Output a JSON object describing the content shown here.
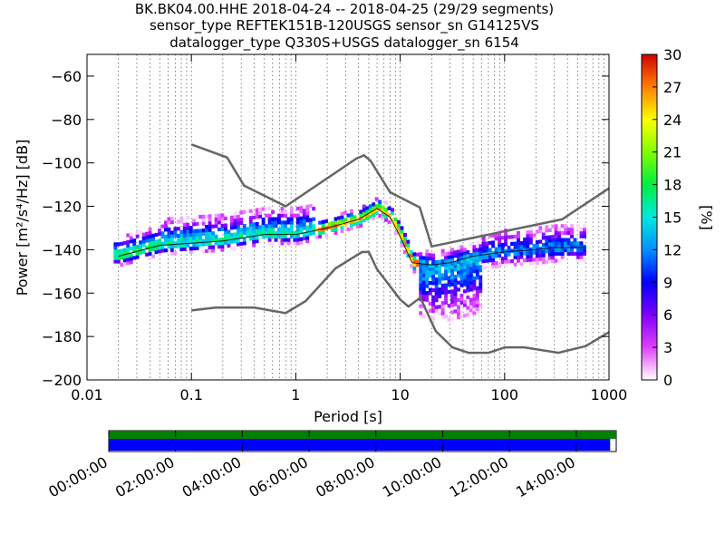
{
  "title_lines": [
    "BK.BK04.00.HHE   2018-04-24 -- 2018-04-25  (29/29 segments)",
    "sensor_type REFTEK151B-120USGS sensor_sn G14125VS",
    "datalogger_type Q330S+USGS datalogger_sn 6154"
  ],
  "chart_data": {
    "type": "heatmap",
    "xlabel": "Period [s]",
    "ylabel": "Power [m²/s⁴/Hz] [dB]",
    "x_scale": "log",
    "xlim": [
      0.01,
      1000
    ],
    "ylim": [
      -200,
      -50
    ],
    "x_ticks": [
      0.01,
      0.1,
      1,
      10,
      100,
      1000
    ],
    "x_tick_labels": [
      "0.01",
      "0.1",
      "1",
      "10",
      "100",
      "1000"
    ],
    "y_ticks": [
      -200,
      -180,
      -160,
      -140,
      -120,
      -100,
      -80,
      -60
    ],
    "y_tick_labels": [
      "−200",
      "−180",
      "−160",
      "−140",
      "−120",
      "−100",
      "−80",
      "−60"
    ],
    "grid": "dotted vertical lines at log subdivisions",
    "colorbar": {
      "label": "[%]",
      "range": [
        0,
        30
      ],
      "ticks": [
        0,
        3,
        6,
        9,
        12,
        15,
        18,
        21,
        24,
        27,
        30
      ],
      "tick_labels": [
        "0",
        "3",
        "6",
        "9",
        "12",
        "15",
        "18",
        "21",
        "24",
        "27",
        "30"
      ]
    },
    "noise_models": [
      {
        "type": "high",
        "color": "#666666",
        "points": [
          [
            0.1,
            -91.5
          ],
          [
            0.22,
            -97.5
          ],
          [
            0.32,
            -110.5
          ],
          [
            0.8,
            -120
          ],
          [
            3.8,
            -98
          ],
          [
            4.5,
            -96.5
          ],
          [
            5.2,
            -99
          ],
          [
            8.0,
            -113.5
          ],
          [
            15.4,
            -120.5
          ],
          [
            20.0,
            -138.5
          ],
          [
            354.8,
            -126
          ],
          [
            10000,
            -80
          ]
        ]
      },
      {
        "type": "low",
        "color": "#666666",
        "points": [
          [
            0.1,
            -168
          ],
          [
            0.17,
            -166.7
          ],
          [
            0.4,
            -166.7
          ],
          [
            0.8,
            -169.2
          ],
          [
            1.24,
            -163.7
          ],
          [
            2.4,
            -148.6
          ],
          [
            4.3,
            -141.1
          ],
          [
            5.0,
            -141
          ],
          [
            6.0,
            -149
          ],
          [
            10.0,
            -163
          ],
          [
            12.0,
            -166.2
          ],
          [
            15.6,
            -162.1
          ],
          [
            21.9,
            -177.5
          ],
          [
            31.6,
            -185
          ],
          [
            45.0,
            -187.5
          ],
          [
            70.0,
            -187.5
          ],
          [
            101.0,
            -185
          ],
          [
            154.0,
            -185
          ],
          [
            328.0,
            -187.5
          ],
          [
            600.0,
            -184.4
          ],
          [
            1000.0,
            -178
          ],
          [
            10000,
            -168
          ]
        ]
      }
    ],
    "mode_curve": {
      "color": "#000000",
      "points": [
        [
          0.02,
          -143
        ],
        [
          0.05,
          -138
        ],
        [
          0.1,
          -137
        ],
        [
          0.2,
          -136
        ],
        [
          0.5,
          -133
        ],
        [
          1,
          -133
        ],
        [
          2,
          -130
        ],
        [
          4,
          -126
        ],
        [
          6,
          -121
        ],
        [
          8,
          -125
        ],
        [
          10,
          -134
        ],
        [
          13,
          -146
        ],
        [
          20,
          -147
        ],
        [
          30,
          -146
        ],
        [
          50,
          -143
        ],
        [
          100,
          -141
        ],
        [
          200,
          -140
        ],
        [
          300,
          -139
        ],
        [
          600,
          -139
        ]
      ]
    },
    "psd_band_ranges": [
      {
        "period_range": [
          0.018,
          0.05
        ],
        "db_range": [
          -147,
          -128
        ],
        "peak_percent": 20
      },
      {
        "period_range": [
          0.05,
          1.5
        ],
        "db_range": [
          -141,
          -117
        ],
        "peak_percent": 22
      },
      {
        "period_range": [
          1.5,
          8
        ],
        "db_range": [
          -135,
          -120
        ],
        "peak_percent": 30
      },
      {
        "period_range": [
          8,
          15
        ],
        "db_range": [
          -150,
          -122
        ],
        "peak_percent": 30
      },
      {
        "period_range": [
          15,
          600
        ],
        "db_range": [
          -175,
          -130
        ],
        "peak_percent": 18
      }
    ],
    "time_axis": {
      "tick_labels": [
        "00:00:00",
        "02:00:00",
        "04:00:00",
        "06:00:00",
        "08:00:00",
        "10:00:00",
        "12:00:00",
        "14:00:00"
      ],
      "data_available": {
        "color": "#008000",
        "start_fraction": 0.0,
        "end_fraction": 1.0
      },
      "psd_processed": {
        "color": "#0000ff",
        "start_fraction": 0.0,
        "end_fraction": 0.988
      }
    }
  }
}
